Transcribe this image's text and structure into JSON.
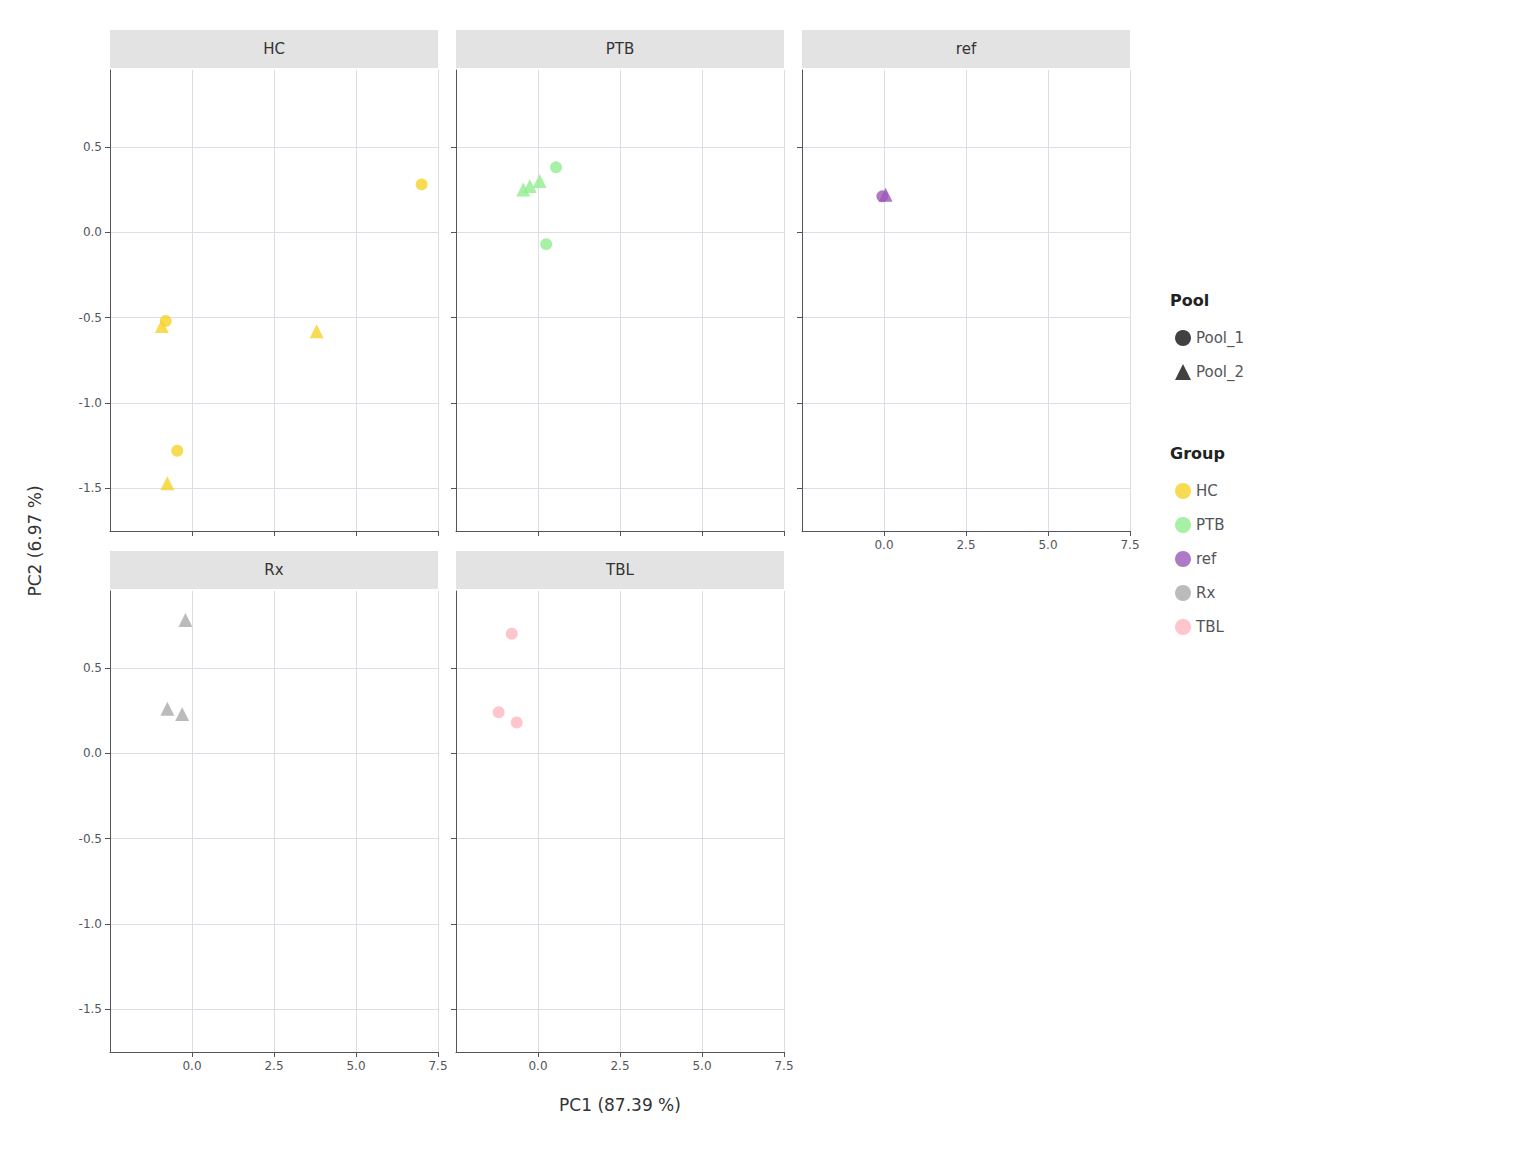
{
  "chart_data": {
    "type": "scatter",
    "xlabel": "PC1 (87.39 %)",
    "ylabel": "PC2 (6.97 %)",
    "xlim": [
      -2.5,
      7.5
    ],
    "ylim": [
      -1.75,
      0.95
    ],
    "xticks": [
      {
        "value": 0.0,
        "label": "0.0"
      },
      2.5,
      {
        "value": 5.0,
        "label": "5.0"
      },
      7.5
    ],
    "yticks": [
      -1.5,
      {
        "value": -1.0,
        "label": "-1.0"
      },
      -0.5,
      {
        "value": 0.0,
        "label": "0.0"
      },
      0.5
    ],
    "grid": true,
    "facet_layout": [
      [
        "HC",
        "PTB",
        "ref"
      ],
      [
        "Rx",
        "TBL",
        null
      ]
    ],
    "series": [
      {
        "name": "HC",
        "facet": "HC",
        "color": "#F5D328",
        "marker": "circle",
        "x": [
          7.0,
          -0.8,
          -0.45
        ],
        "y": [
          0.28,
          -0.52,
          -1.28
        ]
      },
      {
        "name": "HC",
        "facet": "HC",
        "color": "#F5D328",
        "marker": "triangle",
        "x": [
          -0.92,
          3.8,
          -0.75
        ],
        "y": [
          -0.55,
          -0.58,
          -1.47
        ]
      },
      {
        "name": "PTB",
        "facet": "PTB",
        "color": "#90EE90",
        "marker": "circle",
        "x": [
          0.55,
          0.25
        ],
        "y": [
          0.38,
          -0.07
        ]
      },
      {
        "name": "PTB",
        "facet": "PTB",
        "color": "#90EE90",
        "marker": "triangle",
        "x": [
          0.05,
          -0.25,
          -0.45
        ],
        "y": [
          0.3,
          0.27,
          0.25
        ]
      },
      {
        "name": "ref",
        "facet": "ref",
        "color": "#9B59B6",
        "marker": "triangle",
        "x": [
          0.05
        ],
        "y": [
          0.22
        ]
      },
      {
        "name": "ref",
        "facet": "ref",
        "color": "#9B59B6",
        "marker": "circle",
        "x": [
          -0.05
        ],
        "y": [
          0.21
        ]
      },
      {
        "name": "Rx",
        "facet": "Rx",
        "color": "#AAAAAA",
        "marker": "triangle",
        "x": [
          -0.2,
          -0.75,
          -0.3
        ],
        "y": [
          0.78,
          0.26,
          0.23
        ]
      },
      {
        "name": "TBL",
        "facet": "TBL",
        "color": "#FFB6C1",
        "marker": "circle",
        "x": [
          -0.8,
          -1.2,
          -0.65
        ],
        "y": [
          0.7,
          0.24,
          0.18
        ]
      }
    ],
    "legends": [
      {
        "title": "Pool",
        "entries": [
          {
            "name": "Pool_1",
            "marker": "circle",
            "color": "#111111"
          },
          {
            "name": "Pool_2",
            "marker": "triangle",
            "color": "#111111"
          }
        ]
      },
      {
        "title": "Group",
        "entries": [
          {
            "name": "HC",
            "marker": "circle",
            "color": "#F5D328"
          },
          {
            "name": "PTB",
            "marker": "circle",
            "color": "#90EE90"
          },
          {
            "name": "ref",
            "marker": "circle",
            "color": "#9B59B6"
          },
          {
            "name": "Rx",
            "marker": "circle",
            "color": "#AAAAAA"
          },
          {
            "name": "TBL",
            "marker": "circle",
            "color": "#FFB6C1"
          }
        ]
      }
    ]
  }
}
